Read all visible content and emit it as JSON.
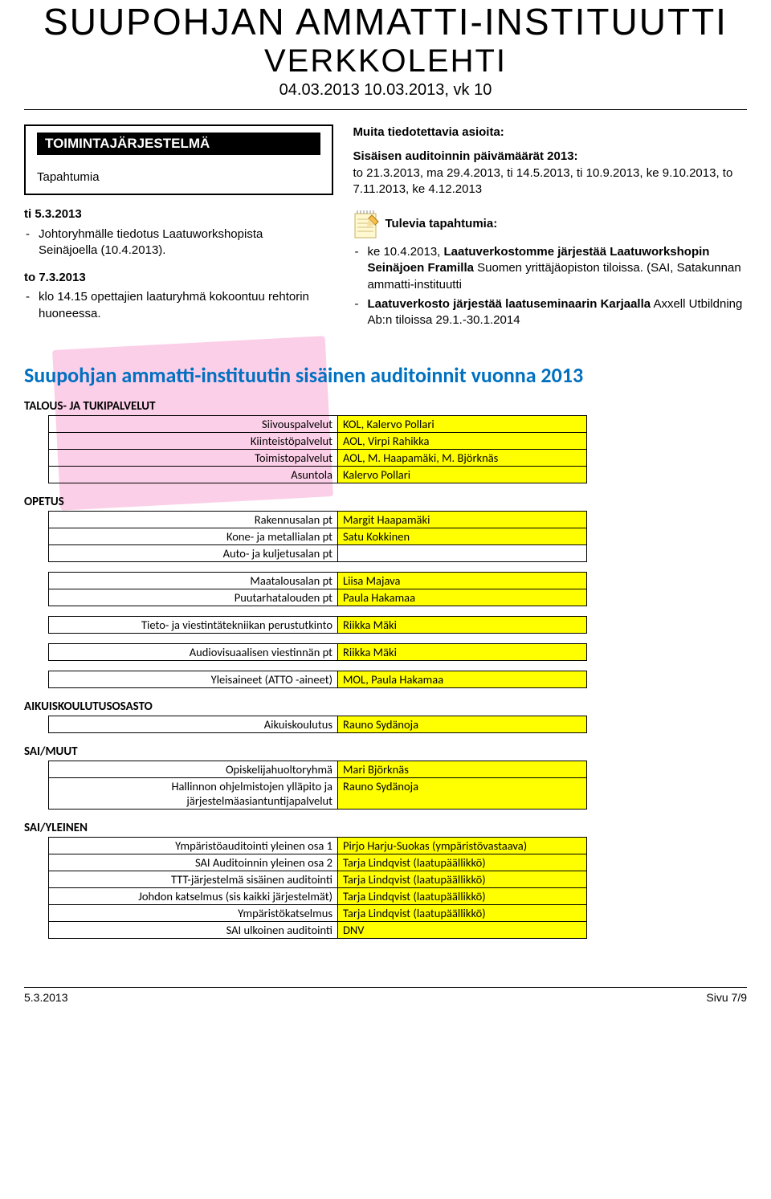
{
  "mast": {
    "title": "SUUPOHJAN AMMATTI-INSTITUUTTI",
    "subtitle": "VERKKOLEHTI",
    "date": "04.03.2013   10.03.2013, vk 10"
  },
  "left": {
    "tab_title": "TOIMINTAJÄRJESTELMÄ",
    "tab_sub": "Tapahtumia",
    "d1_title": "ti 5.3.2013",
    "d1_b1a": "Johtoryhmälle tiedotus Laatuworkshopista",
    "d1_b1b": "Seinäjoella (10.4.2013).",
    "d2_title": "to 7.3.2013",
    "d2_b1": "klo 14.15 opettajien laaturyhmä kokoontuu rehtorin huoneessa."
  },
  "right": {
    "h1": "Muita tiedotettavia asioita:",
    "p1": "Sisäisen auditoinnin päivämäärät 2013:",
    "p2": "to 21.3.2013, ma 29.4.2013, ti 14.5.2013, ti 10.9.2013, ke 9.10.2013, to 7.11.2013, ke 4.12.2013",
    "h2": "Tulevia tapahtumia:",
    "b1_pre": "ke 10.4.2013, ",
    "b1_bold": "Laatuverkostomme järjestää Laatuworkshopin Seinäjoen Framilla",
    "b1_post": " Suomen yrittäjäopiston tiloissa. (SAI, Satakunnan ammatti-instituutti",
    "b2_bold1": "Laatuverkosto järjestää laatuseminaarin Karjaalla",
    "b2_mid": " Axxell Utbildning Ab:n tiloissa 29.1.-30.1.2014"
  },
  "audit": {
    "title": "Suupohjan ammatti-instituutin sisäinen auditoinnit vuonna 2013",
    "groups": [
      {
        "label": "TALOUS- JA TUKIPALVELUT",
        "rows": [
          {
            "l": "Siivouspalvelut",
            "v": "KOL, Kalervo Pollari",
            "hl": true
          },
          {
            "l": "Kiinteistöpalvelut",
            "v": "AOL, Virpi Rahikka",
            "hl": true
          },
          {
            "l": "Toimistopalvelut",
            "v": "AOL, M. Haapamäki, M. Björknäs",
            "hl": true
          },
          {
            "l": "Asuntola",
            "v": "Kalervo Pollari",
            "hl": true
          }
        ]
      },
      {
        "label": "OPETUS",
        "blocks": [
          [
            {
              "l": "Rakennusalan pt",
              "v": "Margit Haapamäki",
              "hl": true
            },
            {
              "l": "Kone- ja metallialan pt",
              "v": "Satu Kokkinen",
              "hl": true
            },
            {
              "l": "Auto- ja kuljetusalan pt",
              "v": "",
              "hl": false
            }
          ],
          [
            {
              "l": "Maatalousalan pt",
              "v": "Liisa Majava",
              "hl": true
            },
            {
              "l": "Puutarhatalouden pt",
              "v": "Paula Hakamaa",
              "hl": true
            }
          ],
          [
            {
              "l": "Tieto- ja viestintätekniikan perustutkinto",
              "v": "Riikka Mäki",
              "hl": true
            }
          ],
          [
            {
              "l": "Audiovisuaalisen viestinnän pt",
              "v": "Riikka Mäki",
              "hl": true
            }
          ],
          [
            {
              "l": "Yleisaineet (ATTO -aineet)",
              "v": "MOL, Paula Hakamaa",
              "hl": true
            }
          ]
        ]
      },
      {
        "label": "AIKUISKOULUTUSOSASTO",
        "rows": [
          {
            "l": "Aikuiskoulutus",
            "v": "Rauno Sydänoja",
            "hl": true
          }
        ]
      },
      {
        "label": "SAI/MUUT",
        "rows": [
          {
            "l": "Opiskelijahuoltoryhmä",
            "v": "Mari Björknäs",
            "hl": true
          },
          {
            "l": "Hallinnon ohjelmistojen ylläpito ja järjestelmäasiantuntijapalvelut",
            "v": "Rauno Sydänoja",
            "hl": true
          }
        ]
      },
      {
        "label": "SAI/YLEINEN",
        "rows": [
          {
            "l": "Ympäristöauditointi yleinen osa 1",
            "v": "Pirjo Harju-Suokas (ympäristövastaava)",
            "hl": true
          },
          {
            "l": "SAI Auditoinnin yleinen osa 2",
            "v": "Tarja Lindqvist (laatupäällikkö)",
            "hl": true
          },
          {
            "l": "TTT-järjestelmä sisäinen auditointi",
            "v": "Tarja Lindqvist (laatupäällikkö)",
            "hl": true
          },
          {
            "l": "Johdon katselmus (sis kaikki järjestelmät)",
            "v": "Tarja Lindqvist (laatupäällikkö)",
            "hl": true
          },
          {
            "l": "Ympäristökatselmus",
            "v": "Tarja Lindqvist (laatupäällikkö)",
            "hl": true
          },
          {
            "l": "SAI ulkoinen auditointi",
            "v": "DNV",
            "hl": true
          }
        ]
      }
    ]
  },
  "footer": {
    "left": "5.3.2013",
    "right": "Sivu 7/9"
  }
}
